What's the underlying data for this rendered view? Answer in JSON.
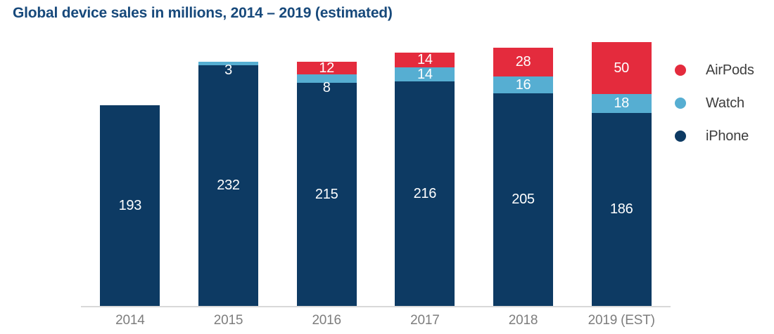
{
  "title": "Global device sales in millions, 2014 – 2019 (estimated)",
  "chart_data": {
    "type": "bar",
    "stacked": true,
    "title": "Global device sales in millions, 2014 – 2019 (estimated)",
    "unit": "millions of units",
    "categories": [
      "2014",
      "2015",
      "2016",
      "2017",
      "2018",
      "2019 (EST)"
    ],
    "series": [
      {
        "name": "iPhone",
        "color": "#0d3a63",
        "values": [
          193,
          232,
          215,
          216,
          205,
          186
        ]
      },
      {
        "name": "Watch",
        "color": "#56aed2",
        "values": [
          0,
          3,
          8,
          14,
          16,
          18
        ]
      },
      {
        "name": "AirPods",
        "color": "#e42b3d",
        "values": [
          0,
          0,
          12,
          14,
          28,
          50
        ]
      }
    ],
    "totals": [
      193,
      235,
      235,
      244,
      249,
      254
    ],
    "value_labels_shown": true,
    "grid": false,
    "ylim": [
      0,
      254
    ],
    "xlabel": "",
    "ylabel": "",
    "legend": {
      "position": "right",
      "items": [
        {
          "label": "AirPods",
          "color": "#e42b3d"
        },
        {
          "label": "Watch",
          "color": "#56aed2"
        },
        {
          "label": "iPhone",
          "color": "#0d3a63"
        }
      ]
    }
  },
  "colors": {
    "background": "#ffffff",
    "title_text": "#17497b",
    "axis_line": "#d9d9d9",
    "axis_label_text": "#7d7d7d",
    "legend_text": "#3d3d3d",
    "value_label_text": "#ffffff"
  }
}
